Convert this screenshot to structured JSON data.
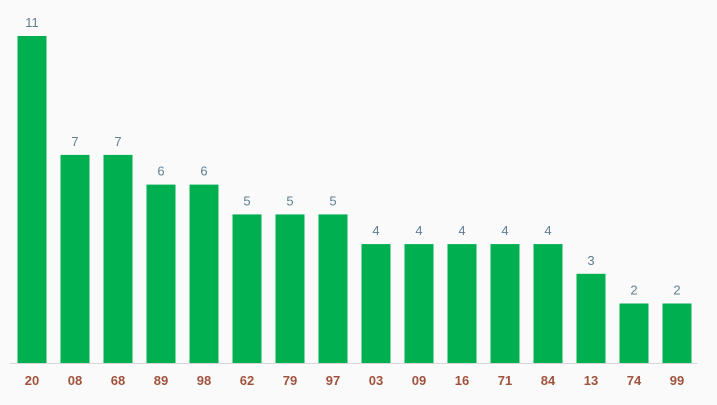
{
  "chart_data": {
    "type": "bar",
    "categories": [
      "20",
      "08",
      "68",
      "89",
      "98",
      "62",
      "79",
      "97",
      "03",
      "09",
      "16",
      "71",
      "84",
      "13",
      "74",
      "99"
    ],
    "values": [
      11,
      7,
      7,
      6,
      6,
      5,
      5,
      5,
      4,
      4,
      4,
      4,
      4,
      3,
      2,
      2
    ],
    "title": "",
    "xlabel": "",
    "ylabel": "",
    "ylim": [
      0,
      11
    ],
    "grid": false,
    "legend": "none",
    "data_labels": true
  },
  "colors": {
    "bar": "#00b050",
    "value_label": "#5f7f91",
    "tick_label": "#a0523d",
    "axis_line": "#d6d6d6",
    "background": "#fafafa"
  }
}
